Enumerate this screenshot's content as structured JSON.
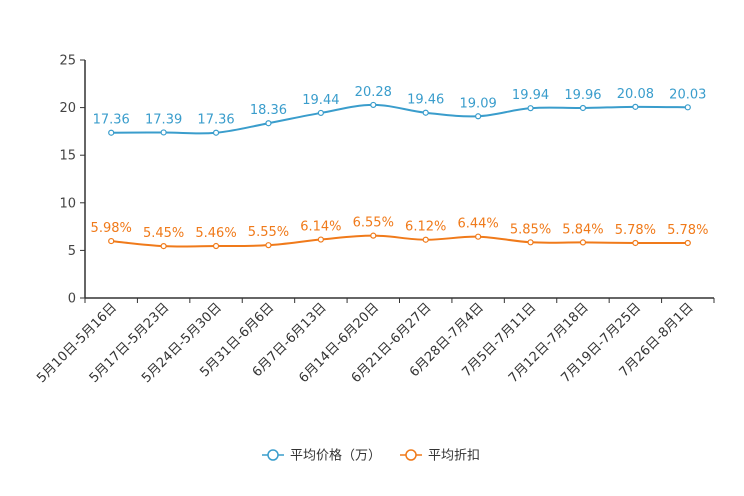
{
  "chart_data": {
    "type": "line",
    "title": "",
    "xlabel": "",
    "ylabel": "",
    "ylim": [
      0,
      25
    ],
    "yticks": [
      0,
      5,
      10,
      15,
      20,
      25
    ],
    "grid": false,
    "legend_position": "bottom-center",
    "categories": [
      "5月10日-5月16日",
      "5月17日-5月23日",
      "5月24日-5月30日",
      "5月31日-6月6日",
      "6月7日-6月13日",
      "6月14日-6月20日",
      "6月21日-6月27日",
      "6月28日-7月4日",
      "7月5日-7月11日",
      "7月12日-7月18日",
      "7月19日-7月25日",
      "7月26日-8月1日"
    ],
    "series": [
      {
        "name": "平均价格（万）",
        "color": "#3a9dcc",
        "values": [
          17.36,
          17.39,
          17.36,
          18.36,
          19.44,
          20.28,
          19.46,
          19.09,
          19.94,
          19.96,
          20.08,
          20.03
        ],
        "labels": [
          "17.36",
          "17.39",
          "17.36",
          "18.36",
          "19.44",
          "20.28",
          "19.46",
          "19.09",
          "19.94",
          "19.96",
          "20.08",
          "20.03"
        ]
      },
      {
        "name": "平均折扣",
        "color": "#f07a1a",
        "values": [
          5.98,
          5.45,
          5.46,
          5.55,
          6.14,
          6.55,
          6.12,
          6.44,
          5.85,
          5.84,
          5.78,
          5.78
        ],
        "labels": [
          "5.98%",
          "5.45%",
          "5.46%",
          "5.55%",
          "6.14%",
          "6.55%",
          "6.12%",
          "6.44%",
          "5.85%",
          "5.84%",
          "5.78%",
          "5.78%"
        ]
      }
    ]
  }
}
